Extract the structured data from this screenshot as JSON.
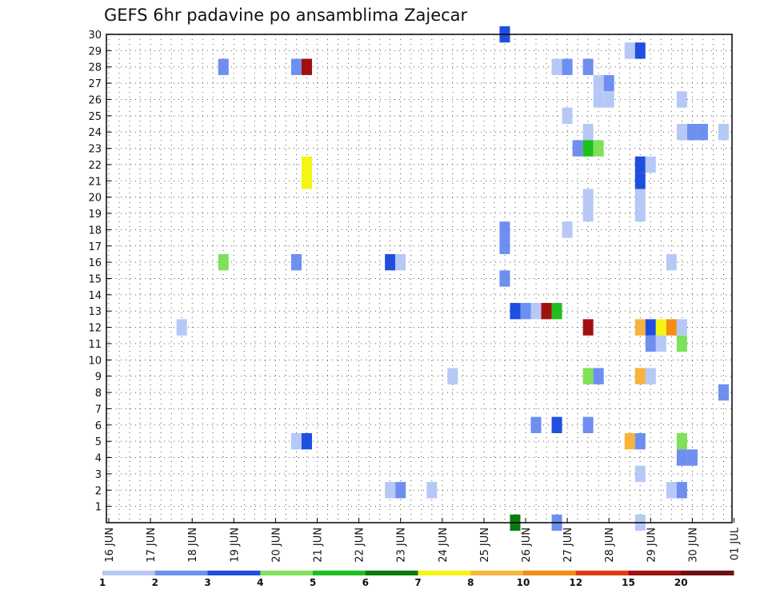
{
  "chart_data": {
    "type": "heatmap",
    "title": "GEFS 6hr padavine po ansamblima Zajecar",
    "y_ticks": [
      "1",
      "2",
      "3",
      "4",
      "5",
      "6",
      "7",
      "8",
      "9",
      "10",
      "11",
      "12",
      "13",
      "14",
      "15",
      "16",
      "17",
      "18",
      "19",
      "20",
      "21",
      "22",
      "23",
      "24",
      "25",
      "26",
      "27",
      "28",
      "29",
      "30"
    ],
    "x_ticks": [
      "16 JUN",
      "17 JUN",
      "18 JUN",
      "19 JUN",
      "20 JUN",
      "21 JUN",
      "22 JUN",
      "23 JUN",
      "24 JUN",
      "25 JUN",
      "26 JUN",
      "27 JUN",
      "28 JUN",
      "29 JUN",
      "30 JUN",
      "01 JUL"
    ],
    "ylim": [
      0,
      30
    ],
    "grid": true,
    "colorbar": {
      "labels": [
        "1",
        "2",
        "3",
        "4",
        "5",
        "6",
        "7",
        "8",
        "10",
        "12",
        "15",
        "20"
      ],
      "colors": [
        "#b6c8f5",
        "#6e8ff0",
        "#1f4fe0",
        "#7fe05a",
        "#1fbf1f",
        "#0d7a0d",
        "#f5f514",
        "#f7b43c",
        "#f58c14",
        "#e03c14",
        "#a01010",
        "#701010"
      ]
    },
    "cells": [
      {
        "x": "25 JUN 12",
        "y": 30,
        "level": 3
      },
      {
        "x": "28 JUN 12",
        "y": 29,
        "level": 1
      },
      {
        "x": "28 JUN 18",
        "y": 29,
        "level": 3
      },
      {
        "x": "18 JUN 18",
        "y": 28,
        "level": 2
      },
      {
        "x": "20 JUN 12",
        "y": 28,
        "level": 2
      },
      {
        "x": "20 JUN 18",
        "y": 28,
        "level": 11
      },
      {
        "x": "26 JUN 18",
        "y": 28,
        "level": 1
      },
      {
        "x": "27 JUN 00",
        "y": 28,
        "level": 2
      },
      {
        "x": "27 JUN 12",
        "y": 28,
        "level": 2
      },
      {
        "x": "27 JUN 18",
        "y": 27,
        "level": 1
      },
      {
        "x": "28 JUN 00",
        "y": 27,
        "level": 2
      },
      {
        "x": "27 JUN 18",
        "y": 26,
        "level": 1
      },
      {
        "x": "28 JUN 00",
        "y": 26,
        "level": 1
      },
      {
        "x": "29 JUN 18",
        "y": 26,
        "level": 1
      },
      {
        "x": "27 JUN 00",
        "y": 25,
        "level": 1
      },
      {
        "x": "27 JUN 12",
        "y": 24,
        "level": 1
      },
      {
        "x": "29 JUN 18",
        "y": 24,
        "level": 1
      },
      {
        "x": "30 JUN 00",
        "y": 24,
        "level": 2
      },
      {
        "x": "30 JUN 06",
        "y": 24,
        "level": 2
      },
      {
        "x": "30 JUN 18",
        "y": 24,
        "level": 1
      },
      {
        "x": "27 JUN 06",
        "y": 23,
        "level": 2
      },
      {
        "x": "27 JUN 12",
        "y": 23,
        "level": 5
      },
      {
        "x": "27 JUN 18",
        "y": 23,
        "level": 4
      },
      {
        "x": "20 JUN 18",
        "y": 22,
        "level": 7
      },
      {
        "x": "28 JUN 18",
        "y": 22,
        "level": 3
      },
      {
        "x": "29 JUN 00",
        "y": 22,
        "level": 1
      },
      {
        "x": "20 JUN 18",
        "y": 21,
        "level": 7
      },
      {
        "x": "28 JUN 18",
        "y": 21,
        "level": 3
      },
      {
        "x": "27 JUN 12",
        "y": 20,
        "level": 1
      },
      {
        "x": "28 JUN 18",
        "y": 20,
        "level": 1
      },
      {
        "x": "27 JUN 12",
        "y": 19,
        "level": 1
      },
      {
        "x": "28 JUN 18",
        "y": 19,
        "level": 1
      },
      {
        "x": "27 JUN 00",
        "y": 18,
        "level": 1
      },
      {
        "x": "25 JUN 12",
        "y": 18,
        "level": 2
      },
      {
        "x": "25 JUN 12",
        "y": 17,
        "level": 2
      },
      {
        "x": "18 JUN 18",
        "y": 16,
        "level": 4
      },
      {
        "x": "20 JUN 12",
        "y": 16,
        "level": 2
      },
      {
        "x": "22 JUN 18",
        "y": 16,
        "level": 3
      },
      {
        "x": "23 JUN 00",
        "y": 16,
        "level": 1
      },
      {
        "x": "29 JUN 12",
        "y": 16,
        "level": 1
      },
      {
        "x": "25 JUN 12",
        "y": 15,
        "level": 2
      },
      {
        "x": "25 JUN 18",
        "y": 13,
        "level": 3
      },
      {
        "x": "26 JUN 00",
        "y": 13,
        "level": 2
      },
      {
        "x": "26 JUN 06",
        "y": 13,
        "level": 1
      },
      {
        "x": "26 JUN 12",
        "y": 13,
        "level": 11
      },
      {
        "x": "26 JUN 18",
        "y": 13,
        "level": 5
      },
      {
        "x": "17 JUN 18",
        "y": 12,
        "level": 1
      },
      {
        "x": "27 JUN 12",
        "y": 12,
        "level": 11
      },
      {
        "x": "28 JUN 18",
        "y": 12,
        "level": 8
      },
      {
        "x": "29 JUN 00",
        "y": 12,
        "level": 3
      },
      {
        "x": "29 JUN 06",
        "y": 12,
        "level": 7
      },
      {
        "x": "29 JUN 12",
        "y": 12,
        "level": 9
      },
      {
        "x": "29 JUN 18",
        "y": 12,
        "level": 1
      },
      {
        "x": "29 JUN 00",
        "y": 11,
        "level": 2
      },
      {
        "x": "29 JUN 06",
        "y": 11,
        "level": 1
      },
      {
        "x": "29 JUN 18",
        "y": 11,
        "level": 4
      },
      {
        "x": "24 JUN 06",
        "y": 9,
        "level": 1
      },
      {
        "x": "27 JUN 12",
        "y": 9,
        "level": 4
      },
      {
        "x": "27 JUN 18",
        "y": 9,
        "level": 2
      },
      {
        "x": "28 JUN 18",
        "y": 9,
        "level": 8
      },
      {
        "x": "29 JUN 00",
        "y": 9,
        "level": 1
      },
      {
        "x": "30 JUN 18",
        "y": 8,
        "level": 2
      },
      {
        "x": "26 JUN 06",
        "y": 6,
        "level": 2
      },
      {
        "x": "26 JUN 18",
        "y": 6,
        "level": 3
      },
      {
        "x": "27 JUN 12",
        "y": 6,
        "level": 2
      },
      {
        "x": "20 JUN 12",
        "y": 5,
        "level": 1
      },
      {
        "x": "20 JUN 18",
        "y": 5,
        "level": 3
      },
      {
        "x": "28 JUN 12",
        "y": 5,
        "level": 8
      },
      {
        "x": "28 JUN 18",
        "y": 5,
        "level": 2
      },
      {
        "x": "29 JUN 18",
        "y": 5,
        "level": 4
      },
      {
        "x": "29 JUN 18",
        "y": 4,
        "level": 2
      },
      {
        "x": "30 JUN 00",
        "y": 4,
        "level": 2
      },
      {
        "x": "28 JUN 18",
        "y": 3,
        "level": 1
      },
      {
        "x": "22 JUN 18",
        "y": 2,
        "level": 1
      },
      {
        "x": "23 JUN 00",
        "y": 2,
        "level": 2
      },
      {
        "x": "23 JUN 18",
        "y": 2,
        "level": 1
      },
      {
        "x": "29 JUN 12",
        "y": 2,
        "level": 1
      },
      {
        "x": "29 JUN 18",
        "y": 2,
        "level": 2
      },
      {
        "x": "25 JUN 18",
        "y": 0,
        "level": 6
      },
      {
        "x": "26 JUN 18",
        "y": 0,
        "level": 2
      },
      {
        "x": "28 JUN 18",
        "y": 0,
        "level": 1
      }
    ]
  }
}
